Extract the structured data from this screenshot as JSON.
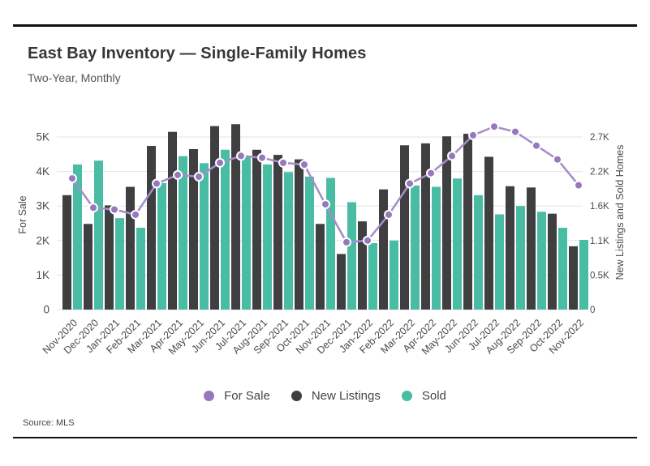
{
  "page": {
    "title": "East Bay Inventory — Single-Family Homes",
    "subtitle": "Two-Year, Monthly",
    "source": "Source: MLS"
  },
  "colors": {
    "for_sale_line": "#a58cc9",
    "for_sale_dot": "#9678bc",
    "new_listings_bar": "#3f3f41",
    "sold_bar": "#48bda3",
    "gridline": "#e3e3e3",
    "tick_text": "#4a4a4a",
    "rule": "#111111"
  },
  "chart_data": {
    "type": "bar",
    "subtype": "dual-axis combo: grouped bars (right axis) + line with markers (left axis)",
    "title": "East Bay Inventory — Single-Family Homes",
    "subtitle": "Two-Year, Monthly",
    "grid": "horizontal gridlines on",
    "legend_position": "bottom center",
    "categories": [
      "Nov-2020",
      "Dec-2020",
      "Jan-2021",
      "Feb-2021",
      "Mar-2021",
      "Apr-2021",
      "May-2021",
      "Jun-2021",
      "Jul-2021",
      "Aug-2021",
      "Sep-2021",
      "Oct-2021",
      "Nov-2021",
      "Dec-2021",
      "Jan-2022",
      "Feb-2022",
      "Mar-2022",
      "Apr-2022",
      "May-2022",
      "Jun-2022",
      "Jul-2022",
      "Aug-2022",
      "Sep-2022",
      "Oct-2022",
      "Nov-2022"
    ],
    "series": [
      {
        "name": "For Sale",
        "render": "line",
        "axis": "left",
        "color": "#9678bc",
        "values": [
          3800,
          2950,
          2900,
          2750,
          3650,
          3900,
          3850,
          4250,
          4450,
          4400,
          4250,
          4200,
          3050,
          1950,
          2000,
          2750,
          3650,
          3950,
          4450,
          5050,
          5300,
          5150,
          4750,
          4350,
          3600
        ]
      },
      {
        "name": "New Listings",
        "render": "bar",
        "axis": "right",
        "color": "#3f3f41",
        "values": [
          1790,
          1340,
          1630,
          1920,
          2560,
          2780,
          2510,
          2870,
          2900,
          2500,
          2420,
          2350,
          1340,
          870,
          1380,
          1880,
          2570,
          2600,
          2710,
          2750,
          2390,
          1930,
          1910,
          1500,
          990
        ]
      },
      {
        "name": "Sold",
        "render": "bar",
        "axis": "right",
        "color": "#48bda3",
        "values": [
          2270,
          2330,
          1430,
          1280,
          1980,
          2400,
          2290,
          2500,
          2390,
          2270,
          2150,
          2080,
          2060,
          1680,
          1040,
          1080,
          1940,
          1920,
          2050,
          1790,
          1490,
          1620,
          1530,
          1280,
          1090
        ]
      }
    ],
    "left_axis": {
      "label": "For Sale",
      "ticks": [
        "0",
        "1K",
        "2K",
        "3K",
        "4K",
        "5K"
      ],
      "tick_values": [
        0,
        1000,
        2000,
        3000,
        4000,
        5000
      ],
      "range": [
        0,
        5000
      ]
    },
    "right_axis": {
      "label": "New Listings and Sold Homes",
      "ticks": [
        "0",
        "0.5K",
        "1.1K",
        "1.6K",
        "2.2K",
        "2.7K"
      ],
      "tick_values": [
        0,
        540,
        1080,
        1620,
        2160,
        2700
      ],
      "range": [
        0,
        2700
      ]
    }
  }
}
